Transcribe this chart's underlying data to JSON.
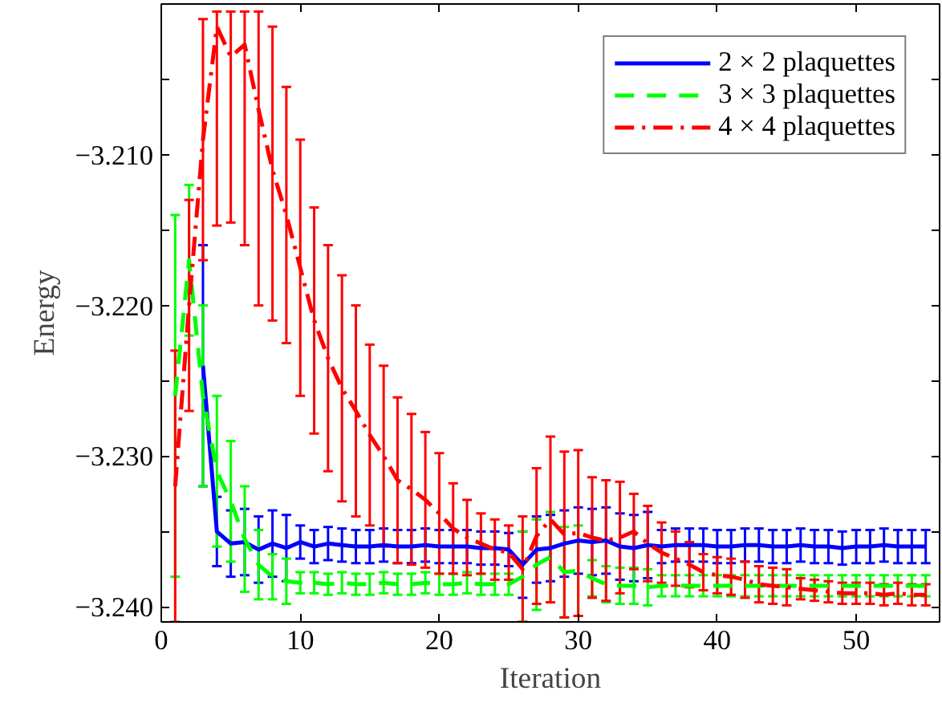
{
  "chart_data": {
    "type": "line",
    "xlabel": "Iteration",
    "ylabel": "Energy",
    "x": [
      1,
      2,
      3,
      4,
      5,
      6,
      7,
      8,
      9,
      10,
      11,
      12,
      13,
      14,
      15,
      16,
      17,
      18,
      19,
      20,
      21,
      22,
      23,
      24,
      25,
      26,
      27,
      28,
      29,
      30,
      31,
      32,
      33,
      34,
      35,
      36,
      37,
      38,
      39,
      40,
      41,
      42,
      43,
      44,
      45,
      46,
      47,
      48,
      49,
      50,
      51,
      52,
      53,
      54,
      55
    ],
    "xlim": [
      0,
      56
    ],
    "xticks": [
      0,
      10,
      20,
      30,
      40,
      50
    ],
    "ylim": [
      -3.241,
      -3.2
    ],
    "yticks": [
      {
        "value": -3.24,
        "label": "−3.240"
      },
      {
        "value": -3.235,
        "label": null
      },
      {
        "value": -3.23,
        "label": "−3.230"
      },
      {
        "value": -3.225,
        "label": null
      },
      {
        "value": -3.22,
        "label": "−3.220"
      },
      {
        "value": -3.215,
        "label": null
      },
      {
        "value": -3.21,
        "label": "−3.210"
      },
      {
        "value": -3.205,
        "label": null
      }
    ],
    "grid": false,
    "legend": "top right",
    "marker": "none",
    "series": [
      {
        "name": "2 × 2 plaquettes",
        "color": "#0000ff",
        "line_style": "solid",
        "values": [
          null,
          null,
          -3.224,
          -3.235,
          -3.2358,
          -3.2357,
          -3.2362,
          -3.2358,
          -3.2361,
          -3.2357,
          -3.236,
          -3.2358,
          -3.2359,
          -3.236,
          -3.236,
          -3.2359,
          -3.236,
          -3.236,
          -3.2359,
          -3.236,
          -3.236,
          -3.236,
          -3.2361,
          -3.2361,
          -3.2362,
          -3.2372,
          -3.2362,
          -3.2361,
          -3.2358,
          -3.2356,
          -3.2357,
          -3.2356,
          -3.236,
          -3.2361,
          -3.2359,
          -3.236,
          -3.2359,
          -3.2359,
          -3.2359,
          -3.236,
          -3.236,
          -3.2359,
          -3.2359,
          -3.236,
          -3.236,
          -3.2359,
          -3.236,
          -3.236,
          -3.2361,
          -3.236,
          -3.236,
          -3.2359,
          -3.236,
          -3.236,
          -3.236
        ],
        "errors": [
          null,
          null,
          0.008,
          0.0023,
          0.0022,
          0.0022,
          0.0022,
          0.0022,
          0.0022,
          0.0011,
          0.0011,
          0.0011,
          0.0011,
          0.0011,
          0.0011,
          0.0011,
          0.0011,
          0.0011,
          0.0011,
          0.0011,
          0.0011,
          0.0011,
          0.0011,
          0.0011,
          0.0011,
          0.0022,
          0.0022,
          0.0022,
          0.0022,
          0.0022,
          0.0022,
          0.0022,
          0.0022,
          0.0022,
          0.0022,
          0.0011,
          0.0011,
          0.0011,
          0.0011,
          0.0011,
          0.0011,
          0.0011,
          0.0011,
          0.0011,
          0.0011,
          0.0011,
          0.0011,
          0.0011,
          0.0011,
          0.0011,
          0.0011,
          0.0011,
          0.0011,
          0.0011,
          0.0011
        ]
      },
      {
        "name": "3 × 3 plaquettes",
        "color": "#00ff00",
        "line_style": "dashed",
        "values": [
          -3.226,
          -3.217,
          -3.226,
          -3.231,
          -3.233,
          -3.2355,
          -3.2372,
          -3.238,
          -3.2383,
          -3.2384,
          -3.2384,
          -3.2385,
          -3.2384,
          -3.2385,
          -3.2385,
          -3.2384,
          -3.2385,
          -3.2385,
          -3.2384,
          -3.2385,
          -3.2385,
          -3.2384,
          -3.2385,
          -3.2385,
          -3.2385,
          -3.238,
          -3.2372,
          -3.2367,
          -3.2377,
          -3.2376,
          -3.2381,
          -3.2385,
          -3.2386,
          -3.2386,
          -3.2387,
          -3.2386,
          -3.2386,
          -3.2386,
          -3.2386,
          -3.2386,
          -3.2386,
          -3.2386,
          -3.2386,
          -3.2386,
          -3.2386,
          -3.2386,
          -3.2386,
          -3.2386,
          -3.2386,
          -3.2386,
          -3.2386,
          -3.2386,
          -3.2386,
          -3.2386,
          -3.2386
        ],
        "errors": [
          0.012,
          0.005,
          0.006,
          0.005,
          0.004,
          0.0035,
          0.0023,
          0.0015,
          0.0015,
          0.0007,
          0.0007,
          0.0007,
          0.0007,
          0.0007,
          0.0007,
          0.0007,
          0.0007,
          0.0007,
          0.0007,
          0.0007,
          0.0007,
          0.0007,
          0.0007,
          0.0007,
          0.0007,
          0.003,
          0.003,
          0.003,
          0.003,
          0.003,
          0.0012,
          0.0012,
          0.0012,
          0.0012,
          0.0012,
          0.0007,
          0.0007,
          0.0007,
          0.0007,
          0.0007,
          0.0007,
          0.0007,
          0.0007,
          0.0007,
          0.0007,
          0.0007,
          0.0007,
          0.0007,
          0.0007,
          0.0007,
          0.0007,
          0.0007,
          0.0007,
          0.0007,
          0.0007
        ]
      },
      {
        "name": "4 × 4 plaquettes",
        "color": "#ff0000",
        "line_style": "dashdot",
        "values": [
          -3.232,
          -3.22,
          -3.209,
          -3.2015,
          -3.2035,
          -3.2027,
          -3.207,
          -3.211,
          -3.214,
          -3.2175,
          -3.221,
          -3.2235,
          -3.2255,
          -3.227,
          -3.2286,
          -3.23,
          -3.2316,
          -3.2322,
          -3.2329,
          -3.2338,
          -3.2348,
          -3.2354,
          -3.2358,
          -3.2362,
          -3.2364,
          -3.2375,
          -3.2353,
          -3.2342,
          -3.2352,
          -3.2351,
          -3.2354,
          -3.2356,
          -3.2354,
          -3.235,
          -3.2358,
          -3.2364,
          -3.2368,
          -3.2372,
          -3.2377,
          -3.2379,
          -3.238,
          -3.2382,
          -3.2385,
          -3.2386,
          -3.2387,
          -3.2388,
          -3.2389,
          -3.239,
          -3.2391,
          -3.2391,
          -3.2391,
          -3.2392,
          -3.2391,
          -3.2392,
          -3.2392
        ],
        "errors": [
          [
            -3.241,
            -3.223
          ],
          0.007,
          0.008,
          [
            -3.2147,
            -3.2005
          ],
          [
            -3.2145,
            -3.2005
          ],
          [
            -3.216,
            -3.2005
          ],
          [
            -3.22,
            -3.2005
          ],
          [
            -3.221,
            -3.2015
          ],
          0.0085,
          0.0085,
          0.0075,
          0.0075,
          0.0075,
          0.007,
          0.006,
          0.006,
          0.0055,
          0.005,
          0.0045,
          0.004,
          0.003,
          0.0025,
          0.002,
          0.002,
          0.0018,
          0.0035,
          0.0045,
          0.0055,
          0.0055,
          0.0055,
          0.004,
          0.004,
          0.0037,
          0.0025,
          0.0025,
          0.002,
          0.0018,
          0.0015,
          0.0012,
          0.0012,
          0.0012,
          0.0012,
          0.0012,
          0.0012,
          0.0012,
          0.0007,
          0.0007,
          0.0007,
          0.0007,
          0.0007,
          0.0007,
          0.0007,
          0.0007,
          0.0007,
          0.0007
        ]
      }
    ]
  }
}
